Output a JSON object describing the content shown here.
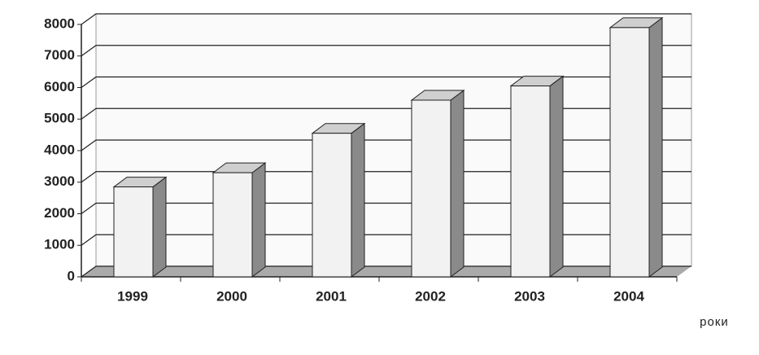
{
  "chart_data": {
    "type": "bar3d",
    "x_label": "роки",
    "categories": [
      "1999",
      "2000",
      "2001",
      "2002",
      "2003",
      "2004"
    ],
    "values": [
      2850,
      3300,
      4550,
      5600,
      6050,
      7900
    ],
    "color": "#f2f2f2",
    "ylim": [
      0,
      8000
    ],
    "yticks": [
      0,
      1000,
      2000,
      3000,
      4000,
      5000,
      6000,
      7000,
      8000
    ],
    "grid": true
  }
}
